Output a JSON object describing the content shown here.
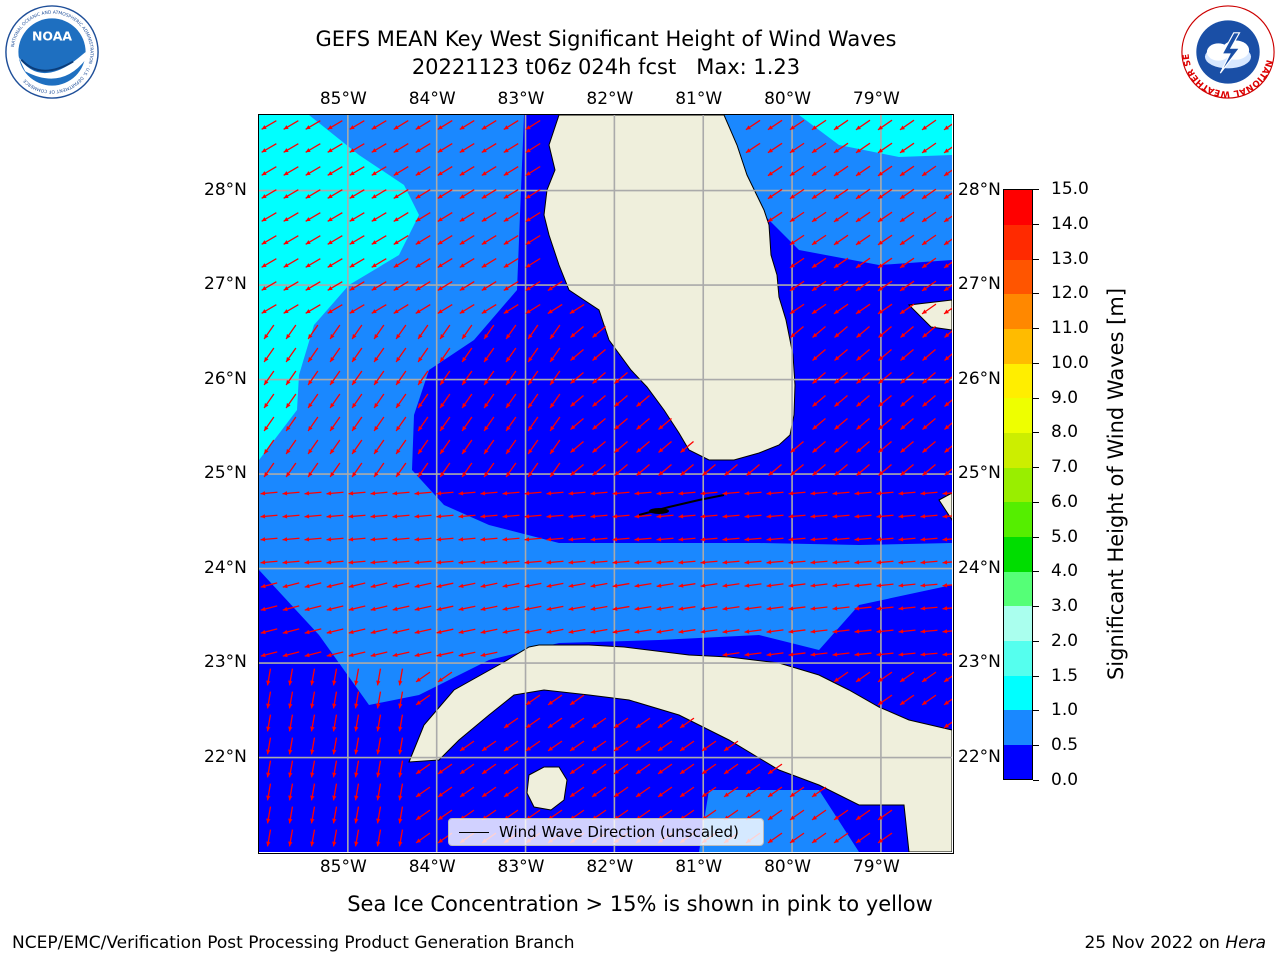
{
  "header": {
    "title": "GEFS MEAN Key West Significant Height of Wind Waves",
    "subtitle": "20221123 t06z 024h fcst   Max: 1.23"
  },
  "logos": {
    "noaa_icon": "noaa-logo",
    "noaa_text": "NOAA",
    "noaa_ring_text": "NATIONAL OCEANIC AND ATMOSPHERIC ADMINISTRATION · U.S. DEPARTMENT OF COMMERCE",
    "nws_icon": "nws-logo",
    "nws_ring_text": "NATIONAL WEATHER SERVICE"
  },
  "map": {
    "lon_labels": [
      "85°W",
      "84°W",
      "83°W",
      "82°W",
      "81°W",
      "80°W",
      "79°W"
    ],
    "lat_labels": [
      "28°N",
      "27°N",
      "26°N",
      "25°N",
      "24°N",
      "23°N",
      "22°N"
    ],
    "extent": {
      "lon_min": -86.0,
      "lon_max": -78.2,
      "lat_min": 21.0,
      "lat_max": 28.8
    },
    "grid": true,
    "land_color": "#efefdc",
    "arrow_color": "#ff0000",
    "fill_colors": {
      "0.0-0.5": "#0000ff",
      "0.5-1.0": "#1a88ff",
      "1.0-1.5": "#00ffff"
    }
  },
  "legend": {
    "label": "Wind Wave Direction (unscaled)",
    "placement": "lower-center"
  },
  "colorbar": {
    "title": "Significant Height of Wind Waves [m]",
    "ticks": [
      "0.0",
      "0.5",
      "1.0",
      "1.5",
      "2.0",
      "3.0",
      "4.0",
      "5.0",
      "6.0",
      "7.0",
      "8.0",
      "9.0",
      "10.0",
      "11.0",
      "12.0",
      "13.0",
      "14.0",
      "15.0"
    ],
    "colors": [
      "#0000ff",
      "#1a88ff",
      "#00ffff",
      "#55ffee",
      "#aaffee",
      "#55ff77",
      "#00dd00",
      "#55ee00",
      "#99ee00",
      "#ccee00",
      "#eeff00",
      "#ffee00",
      "#ffbb00",
      "#ff8800",
      "#ff5500",
      "#ff2a00",
      "#ff0000"
    ]
  },
  "caption": "Sea Ice Concentration > 15% is shown in pink to yellow",
  "footer": {
    "left": "NCEP/EMC/Verification Post Processing Product Generation Branch",
    "right_date": "25 Nov 2022 on",
    "right_host": "Hera"
  }
}
